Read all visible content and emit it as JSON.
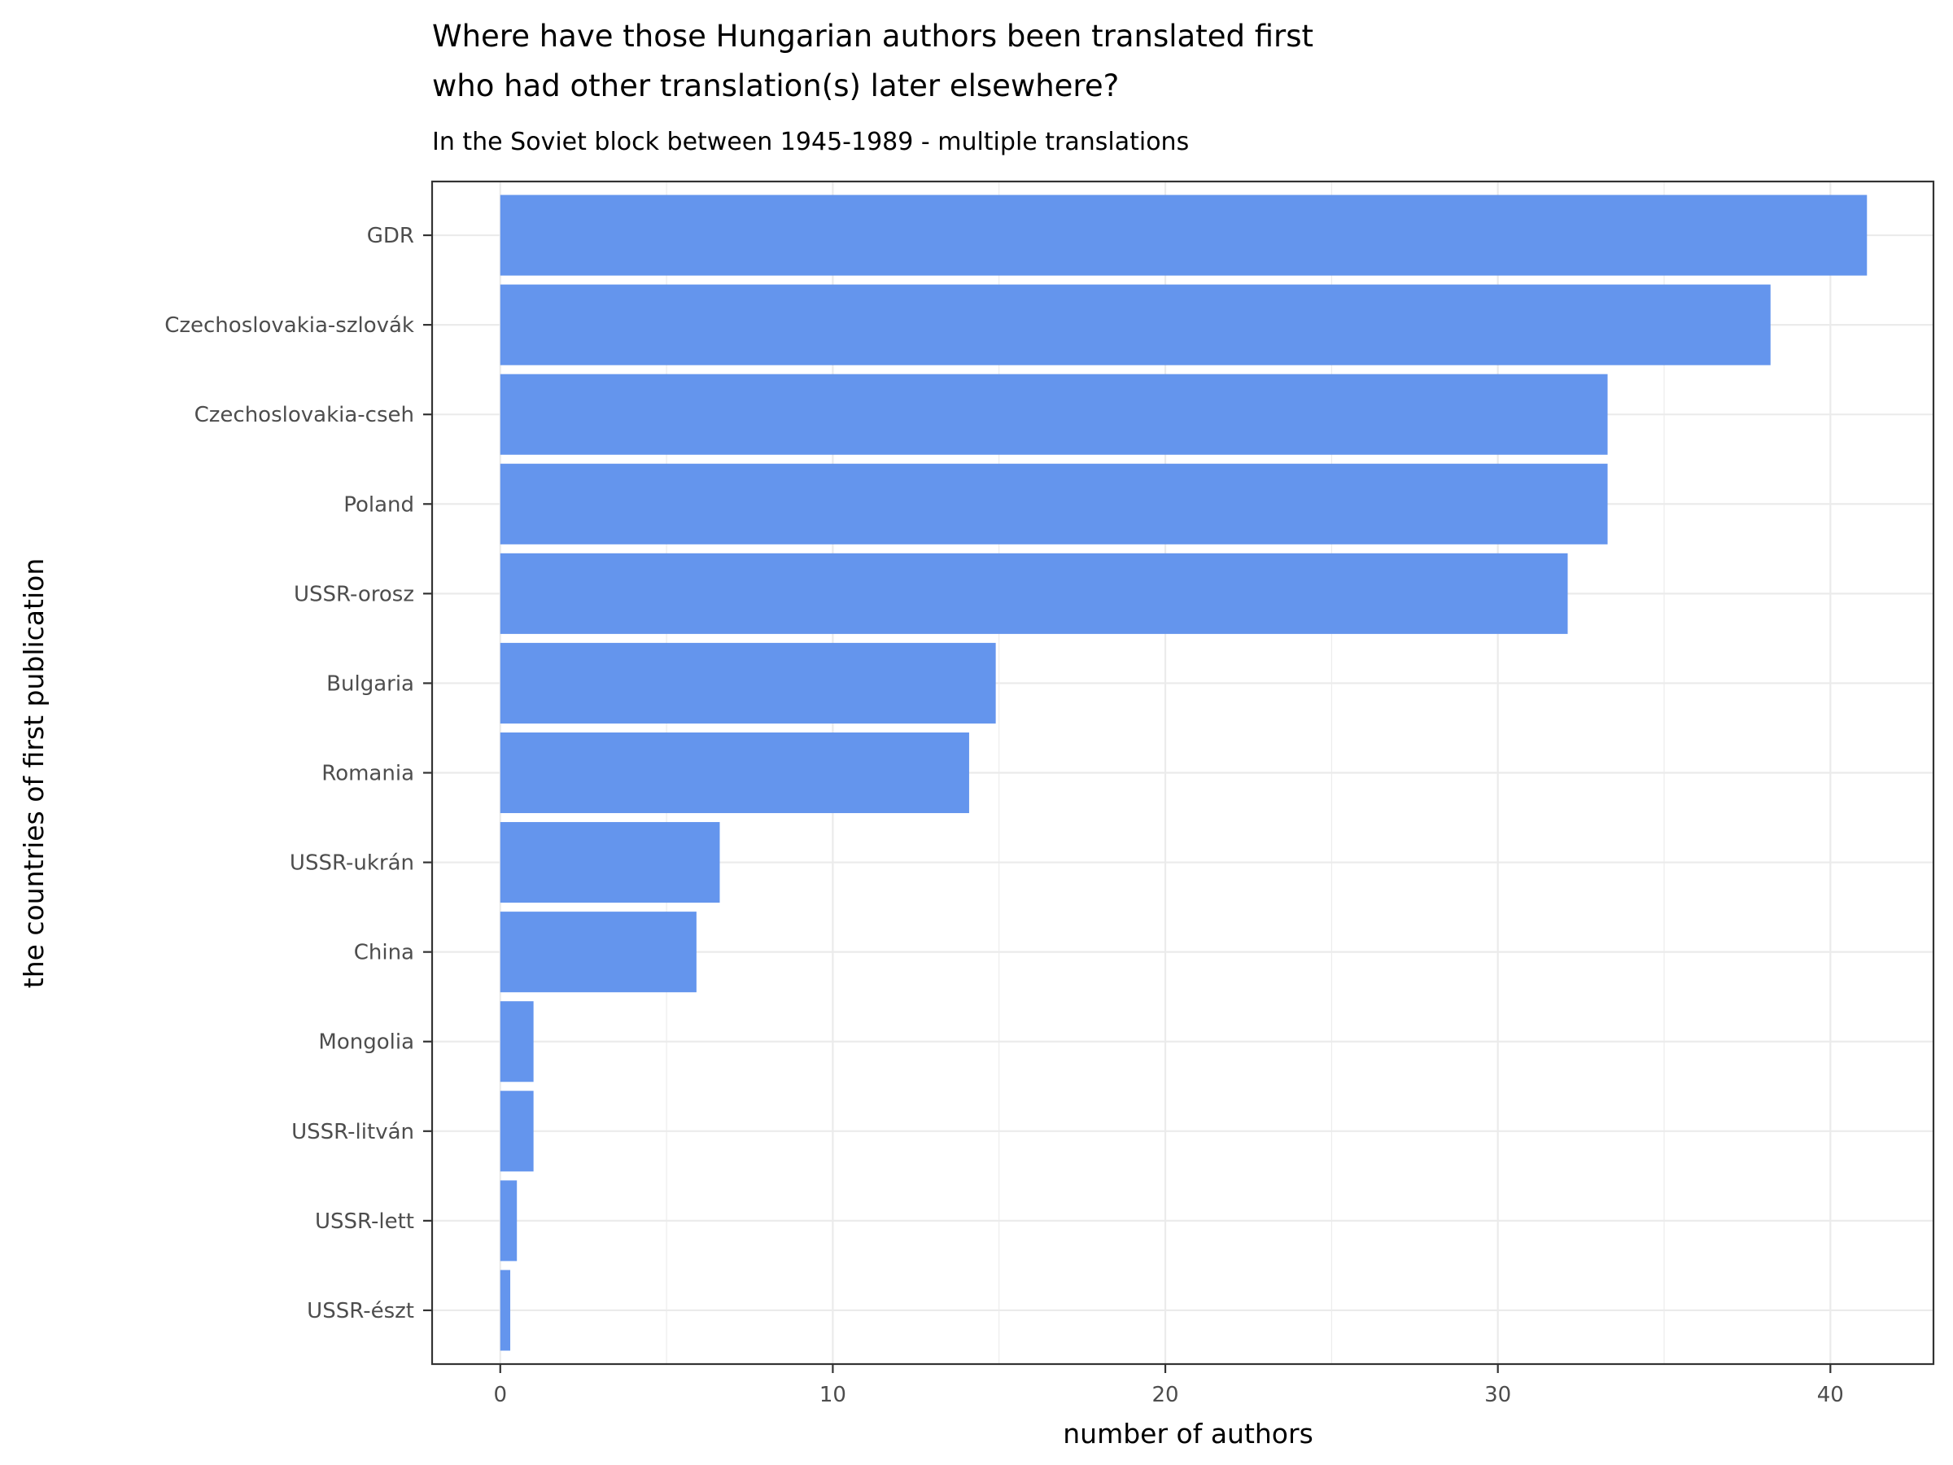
{
  "chart_data": {
    "type": "bar",
    "orientation": "horizontal",
    "title_lines": [
      "Where have those Hungarian authors been translated first",
      "who had other translation(s) later elsewhere?"
    ],
    "subtitle": "In the Soviet block between 1945-1989 - multiple translations",
    "xlabel": "number of authors",
    "ylabel": "the countries of first publication",
    "categories": [
      "GDR",
      "Czechoslovakia-szlovák",
      "Czechoslovakia-cseh",
      "Poland",
      "USSR-orosz",
      "Bulgaria",
      "Romania",
      "USSR-ukrán",
      "China",
      "Mongolia",
      "USSR-litván",
      "USSR-lett",
      "USSR-észt"
    ],
    "values": [
      41.1,
      38.2,
      33.3,
      33.3,
      32.1,
      14.9,
      14.1,
      6.6,
      5.9,
      1.0,
      1.0,
      0.5,
      0.3
    ],
    "xlim": [
      -2.05,
      43.1
    ],
    "xticks": [
      0,
      10,
      20,
      30,
      40
    ],
    "xtick_labels": [
      "0",
      "10",
      "20",
      "30",
      "40"
    ],
    "x_minor_ticks": [
      5,
      15,
      25,
      35
    ],
    "grid": true,
    "bar_color": "#6495ED",
    "theme": "bw"
  }
}
